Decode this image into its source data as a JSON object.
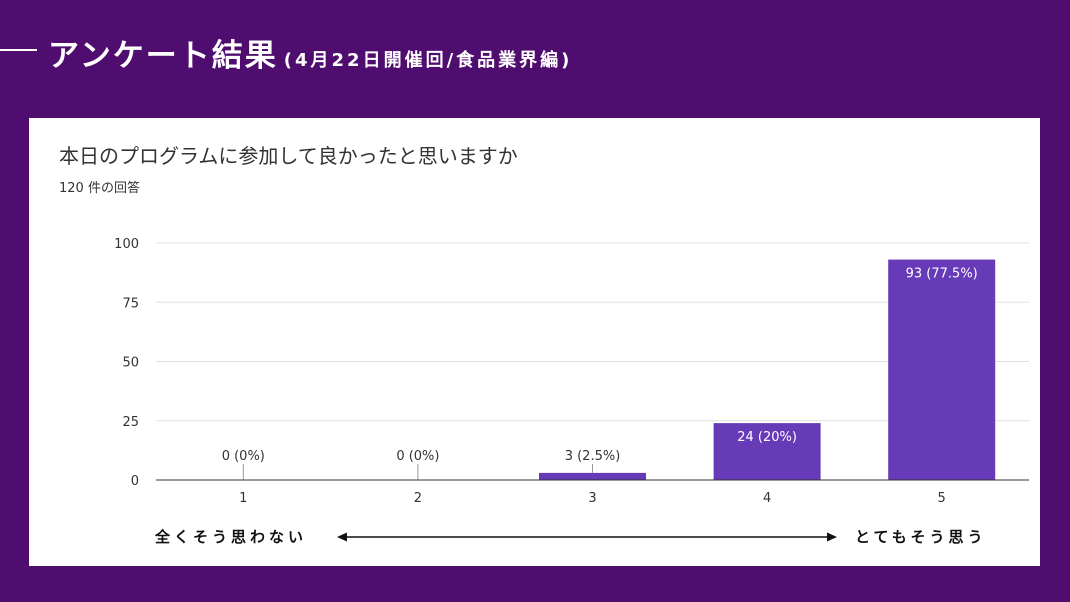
{
  "header": {
    "title": "アンケート結果",
    "subtitle": "(4月22日開催回/食品業界編)"
  },
  "survey": {
    "question": "本日のプログラムに参加して良かったと思いますか",
    "response_count": "120 件の回答"
  },
  "scale": {
    "left_label": "全くそう思わない",
    "right_label": "とてもそう思う"
  },
  "colors": {
    "background": "#4f0d6f",
    "bar": "#673ab7"
  },
  "chart_data": {
    "type": "bar",
    "categories": [
      "1",
      "2",
      "3",
      "4",
      "5"
    ],
    "values": [
      0,
      0,
      3,
      24,
      93
    ],
    "data_labels": [
      "0 (0%)",
      "0 (0%)",
      "3 (2.5%)",
      "24 (20%)",
      "93 (77.5%)"
    ],
    "yticks": [
      0,
      25,
      50,
      75,
      100
    ],
    "ylim": [
      0,
      100
    ],
    "grid": true,
    "title": "",
    "xlabel": "",
    "ylabel": ""
  }
}
